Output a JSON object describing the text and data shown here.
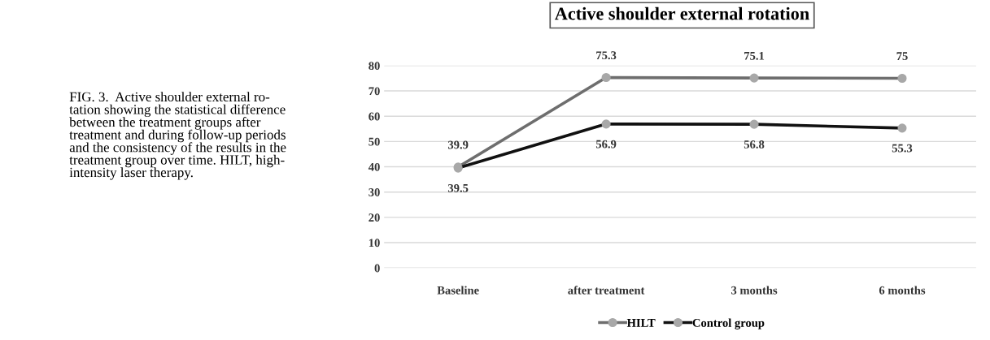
{
  "chart_data": {
    "type": "line",
    "title": "Active shoulder external rotation",
    "categories": [
      "Baseline",
      "after treatment",
      "3 months",
      "6 months"
    ],
    "series": [
      {
        "name": "HILT",
        "color": "#6e6e6e",
        "values": [
          39.9,
          75.3,
          75.1,
          75
        ]
      },
      {
        "name": "Control group",
        "color": "#111111",
        "values": [
          39.5,
          56.9,
          56.8,
          55.3
        ]
      }
    ],
    "ylim": [
      0,
      80
    ],
    "yticks": [
      0,
      10,
      20,
      30,
      40,
      50,
      60,
      70,
      80
    ],
    "grid": "y",
    "legend": "bottom",
    "marker": "circle",
    "line_style": "solid",
    "data_labels": true,
    "annotations": [
      "FIG. 3.  Active shoulder external ro-\ntation showing the statistical difference\nbetween the treatment groups after\ntreatment and during follow-up periods\nand the consistency of the results in the\ntreatment group over time. HILT, high-\nintensity laser therapy."
    ]
  }
}
